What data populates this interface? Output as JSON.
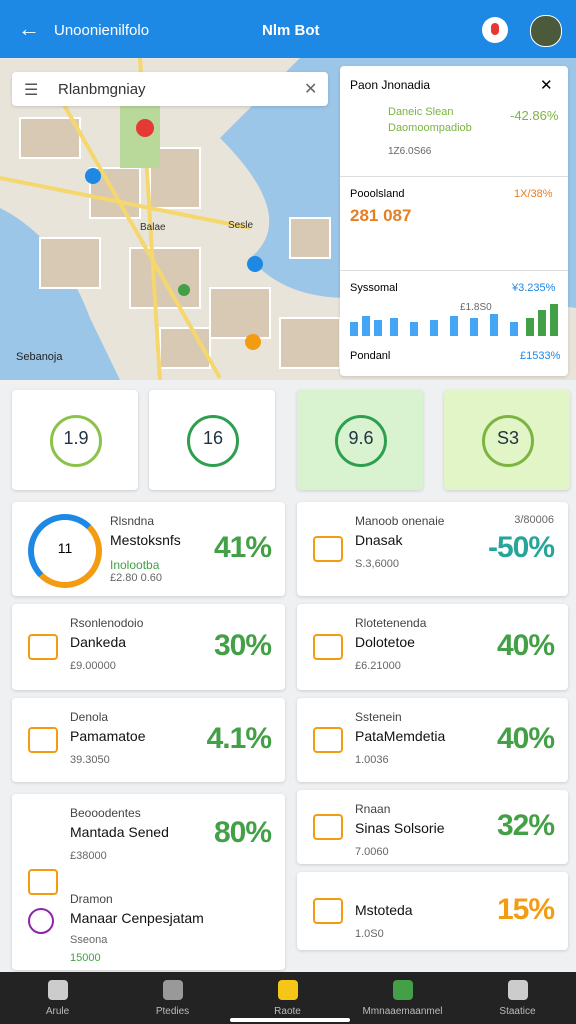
{
  "header": {
    "title": "Unoonienilfolo",
    "center": "Nlm Bot"
  },
  "search": {
    "placeholder": "Rlanbmgniay"
  },
  "map": {
    "label": "Sebanoja",
    "pins": [
      "Balae",
      "Sesle"
    ]
  },
  "panel": {
    "title": "Paon Jnonadia",
    "rows": [
      {
        "title": "Daneic Slean",
        "subtitle": "Daomoompadiob",
        "value": "-42.86%",
        "meta": "1Z6.0S66"
      },
      {
        "title": "Pooolsland",
        "value": "281 087",
        "right": "1X/38%"
      },
      {
        "title": "Syssomal",
        "note": "£1.8S0",
        "value": "¥3.235%"
      },
      {
        "title": "Pondanl",
        "value": "£1533%"
      }
    ]
  },
  "stats": [
    "1.9",
    "16",
    "9.6",
    "S3"
  ],
  "cards_left": [
    {
      "donut": "11",
      "kicker": "Rlsndna",
      "title": "Mestoksnfs",
      "sub": "Inolootba",
      "meta": "£2.80 0.60",
      "value": "41%"
    },
    {
      "kicker": "Rsonlenodoio",
      "title": "Dankeda",
      "meta": "£9.00000",
      "value": "30%"
    },
    {
      "kicker": "Denola",
      "title": "Pamamatoe",
      "meta": "39.3050",
      "value": "4.1%"
    },
    {
      "kicker": "Beooodentes",
      "title": "Mantada Sened",
      "meta": "£38000",
      "value": "80%",
      "kicker2": "Dramon",
      "title2": "Manaar Cenpesjatam",
      "meta2": "Sseona",
      "meta3": "15000"
    }
  ],
  "cards_right": [
    {
      "kicker": "Manoob onenaie",
      "title": "Dnasak",
      "meta": "S.3,6000",
      "value": "-50%",
      "corner": "3/80006"
    },
    {
      "kicker": "Rlotetenenda",
      "title": "Dolotetoe",
      "meta": "£6.21000",
      "value": "40%"
    },
    {
      "kicker": "Sstenein",
      "title": "PataMemdetia",
      "meta": "1.0036",
      "value": "40%"
    },
    {
      "kicker": "Rnaan",
      "title": "Sinas Solsorie",
      "meta": "7.0060",
      "value": "32%"
    },
    {
      "title": "Mstoteda",
      "meta": "1.0S0",
      "value": "15%"
    }
  ],
  "nav": [
    "Arule",
    "Ptedies",
    "Raote",
    "Mmnaaemaanmel",
    "Staatice"
  ]
}
